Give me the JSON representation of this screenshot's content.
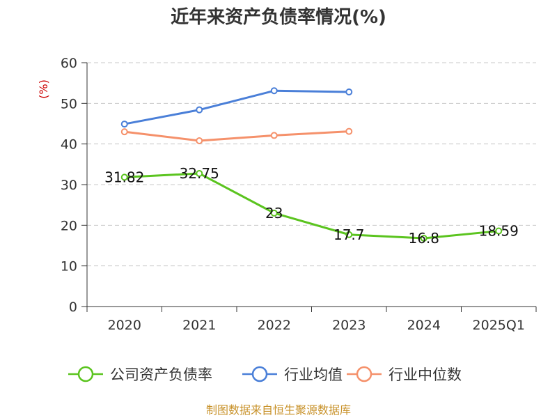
{
  "chart_data": {
    "type": "line",
    "title": "近年来资产负债率情况(%)",
    "ylabel": "(%)",
    "xlabel": "",
    "categories": [
      "2020",
      "2021",
      "2022",
      "2023",
      "2024",
      "2025Q1"
    ],
    "ylim": [
      0,
      60
    ],
    "yticks": [
      0,
      10,
      20,
      30,
      40,
      50,
      60
    ],
    "grid": true,
    "legend_position": "bottom",
    "series": [
      {
        "name": "公司资产负债率",
        "color": "#5bc41f",
        "values": [
          31.82,
          32.75,
          23,
          17.7,
          16.8,
          18.59
        ],
        "labels": [
          "31.82",
          "32.75",
          "23",
          "17.7",
          "16.8",
          "18.59"
        ]
      },
      {
        "name": "行业均值",
        "color": "#4a7fd8",
        "values": [
          44.9,
          48.4,
          53.1,
          52.8,
          null,
          null
        ]
      },
      {
        "name": "行业中位数",
        "color": "#f5916b",
        "values": [
          43.0,
          40.8,
          42.1,
          43.1,
          null,
          null
        ]
      }
    ]
  },
  "source": "制图数据来自恒生聚源数据库"
}
